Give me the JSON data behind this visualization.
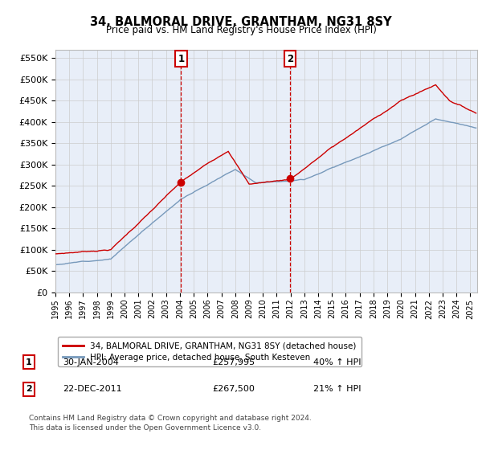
{
  "title": "34, BALMORAL DRIVE, GRANTHAM, NG31 8SY",
  "subtitle": "Price paid vs. HM Land Registry's House Price Index (HPI)",
  "ylabel_ticks": [
    "£0",
    "£50K",
    "£100K",
    "£150K",
    "£200K",
    "£250K",
    "£300K",
    "£350K",
    "£400K",
    "£450K",
    "£500K",
    "£550K"
  ],
  "ytick_values": [
    0,
    50000,
    100000,
    150000,
    200000,
    250000,
    300000,
    350000,
    400000,
    450000,
    500000,
    550000
  ],
  "ylim": [
    0,
    570000
  ],
  "xlim_start": 1995.0,
  "xlim_end": 2025.5,
  "sale1_x": 2004.08,
  "sale1_y": 257995,
  "sale2_x": 2011.97,
  "sale2_y": 267500,
  "sale1_label": "30-JAN-2004",
  "sale1_price": "£257,995",
  "sale1_hpi": "40% ↑ HPI",
  "sale2_label": "22-DEC-2011",
  "sale2_price": "£267,500",
  "sale2_hpi": "21% ↑ HPI",
  "red_line_color": "#cc0000",
  "blue_line_color": "#7799bb",
  "background_color": "#ffffff",
  "plot_bg_color": "#e8eef8",
  "grid_color": "#cccccc",
  "legend_line1": "34, BALMORAL DRIVE, GRANTHAM, NG31 8SY (detached house)",
  "legend_line2": "HPI: Average price, detached house, South Kesteven",
  "footer": "Contains HM Land Registry data © Crown copyright and database right 2024.\nThis data is licensed under the Open Government Licence v3.0.",
  "x_tick_years": [
    1995,
    1996,
    1997,
    1998,
    1999,
    2000,
    2001,
    2002,
    2003,
    2004,
    2005,
    2006,
    2007,
    2008,
    2009,
    2010,
    2011,
    2012,
    2013,
    2014,
    2015,
    2016,
    2017,
    2018,
    2019,
    2020,
    2021,
    2022,
    2023,
    2024,
    2025
  ]
}
